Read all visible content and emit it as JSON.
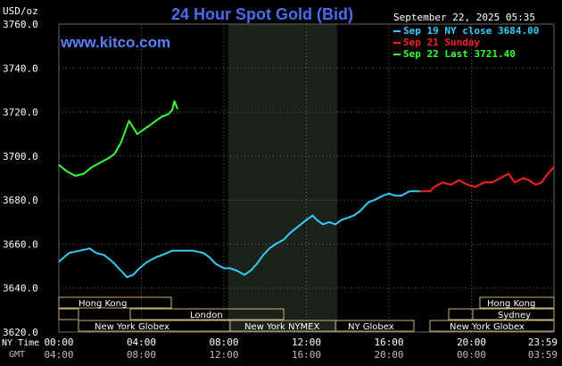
{
  "header": {
    "title": "24 Hour Spot Gold (Bid)",
    "unit": "USD/oz",
    "site": "www.kitco.com",
    "timestamp": "September 22, 2025 05:35"
  },
  "legend": [
    {
      "label": "Sep 19 NY close 3684.00",
      "color": "#33ccff"
    },
    {
      "label": "Sep 21 Sunday",
      "color": "#ff2020"
    },
    {
      "label": "Sep 22 Last 3721.40",
      "color": "#33ff33"
    }
  ],
  "markets_left": [
    {
      "name": "Hong Kong"
    },
    {
      "name": "London"
    },
    {
      "name": "New York Globex"
    },
    {
      "name": "New York NYMEX"
    },
    {
      "name": "NY Globex"
    }
  ],
  "markets_right": [
    {
      "name": "Hong Kong"
    },
    {
      "name": "Sydney"
    },
    {
      "name": "New York Globex"
    }
  ],
  "axis_labels": {
    "ny_time": "NY Time",
    "gmt": "GMT"
  },
  "colors": {
    "background": "#000000",
    "grid": "#666666",
    "title": "#4c6bf0",
    "site": "#5a80ff",
    "axis_text": "#ffffff",
    "gmt_text": "#bbbbbb",
    "market_box": "#c8b27a",
    "market_text": "#ffffff",
    "nymex_shade": "#1a221a"
  },
  "chart_data": {
    "type": "line",
    "x_unit": "hours (NY time)",
    "xlim": [
      0,
      24
    ],
    "ylim": [
      3620,
      3760
    ],
    "yticks": [
      "3760.0",
      "3740.0",
      "3720.0",
      "3700.0",
      "3680.0",
      "3660.0",
      "3640.0",
      "3620.0"
    ],
    "xticks_ny": [
      "00:00",
      "04:00",
      "08:00",
      "12:00",
      "16:00",
      "20:00",
      "23:59"
    ],
    "xticks_gmt": [
      "04:00",
      "08:00",
      "12:00",
      "16:00",
      "20:00",
      "00:00",
      "03:59"
    ],
    "shaded_period": [
      8.2,
      13.5
    ],
    "series": [
      {
        "name": "Sep 19 NY close 3684.00",
        "color": "#33ccff",
        "points": [
          [
            0,
            3652
          ],
          [
            0.5,
            3656
          ],
          [
            1,
            3657
          ],
          [
            1.5,
            3658
          ],
          [
            1.8,
            3656
          ],
          [
            2.2,
            3655
          ],
          [
            2.6,
            3652
          ],
          [
            3,
            3648
          ],
          [
            3.3,
            3645
          ],
          [
            3.6,
            3646
          ],
          [
            3.9,
            3649
          ],
          [
            4.3,
            3652
          ],
          [
            4.7,
            3654
          ],
          [
            5,
            3655
          ],
          [
            5.5,
            3657
          ],
          [
            6,
            3657
          ],
          [
            6.5,
            3657
          ],
          [
            7,
            3656
          ],
          [
            7.3,
            3654
          ],
          [
            7.6,
            3651
          ],
          [
            8,
            3649
          ],
          [
            8.3,
            3649
          ],
          [
            8.6,
            3648
          ],
          [
            9,
            3646
          ],
          [
            9.3,
            3648
          ],
          [
            9.6,
            3651
          ],
          [
            9.9,
            3655
          ],
          [
            10.2,
            3658
          ],
          [
            10.5,
            3660
          ],
          [
            10.9,
            3662
          ],
          [
            11.2,
            3665
          ],
          [
            11.6,
            3668
          ],
          [
            12,
            3671
          ],
          [
            12.3,
            3673
          ],
          [
            12.5,
            3671
          ],
          [
            12.8,
            3669
          ],
          [
            13.1,
            3670
          ],
          [
            13.4,
            3669
          ],
          [
            13.7,
            3671
          ],
          [
            14,
            3672
          ],
          [
            14.3,
            3673
          ],
          [
            14.6,
            3675
          ],
          [
            15,
            3679
          ],
          [
            15.3,
            3680
          ],
          [
            15.7,
            3682
          ],
          [
            16,
            3683
          ],
          [
            16.3,
            3682
          ],
          [
            16.6,
            3682
          ],
          [
            17,
            3684
          ],
          [
            17.5,
            3684
          ]
        ]
      },
      {
        "name": "Sep 21 Sunday",
        "color": "#ff2020",
        "points": [
          [
            17.5,
            3684
          ],
          [
            18,
            3684
          ],
          [
            18.2,
            3686
          ],
          [
            18.6,
            3688
          ],
          [
            19,
            3687
          ],
          [
            19.4,
            3689
          ],
          [
            19.8,
            3687
          ],
          [
            20.2,
            3686
          ],
          [
            20.6,
            3688
          ],
          [
            21,
            3688
          ],
          [
            21.4,
            3690
          ],
          [
            21.8,
            3692
          ],
          [
            22.1,
            3688
          ],
          [
            22.5,
            3690
          ],
          [
            22.8,
            3689
          ],
          [
            23.1,
            3687
          ],
          [
            23.4,
            3688
          ],
          [
            23.7,
            3692
          ],
          [
            24,
            3695
          ]
        ]
      },
      {
        "name": "Sep 22 Last 3721.40",
        "color": "#33ff33",
        "points": [
          [
            0,
            3696
          ],
          [
            0.4,
            3693
          ],
          [
            0.8,
            3691
          ],
          [
            1.2,
            3692
          ],
          [
            1.6,
            3695
          ],
          [
            2,
            3697
          ],
          [
            2.4,
            3699
          ],
          [
            2.7,
            3701
          ],
          [
            3,
            3706
          ],
          [
            3.2,
            3711
          ],
          [
            3.4,
            3716
          ],
          [
            3.6,
            3713
          ],
          [
            3.8,
            3710
          ],
          [
            4.1,
            3712
          ],
          [
            4.4,
            3714
          ],
          [
            4.7,
            3716
          ],
          [
            5,
            3718
          ],
          [
            5.3,
            3719
          ],
          [
            5.5,
            3721
          ],
          [
            5.6,
            3725
          ],
          [
            5.75,
            3721.4
          ]
        ]
      }
    ]
  }
}
